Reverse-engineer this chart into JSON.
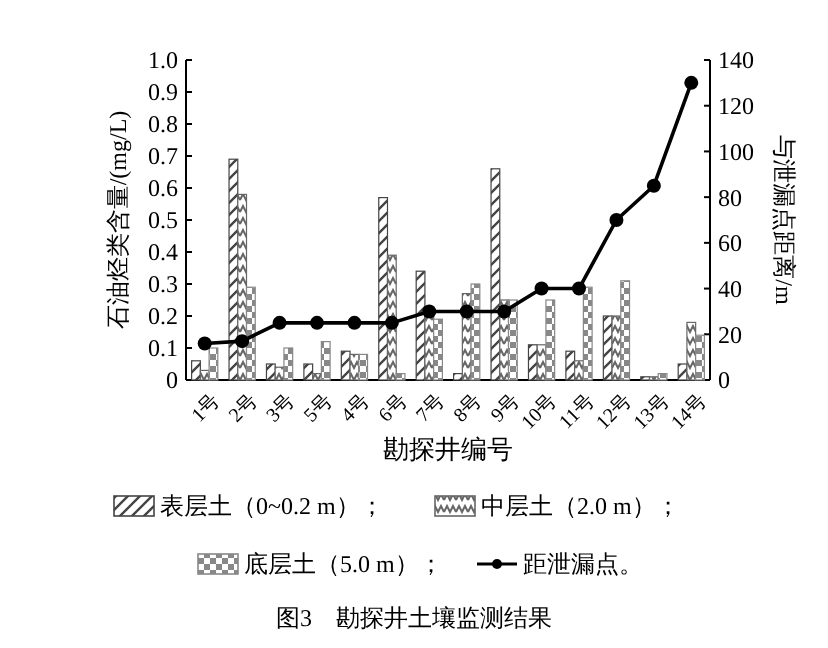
{
  "chart_data": {
    "type": "bar",
    "title": "图3　勘探井土壤监测结果",
    "xlabel": "勘探井编号",
    "ylabel": "石油烃类含量/(mg/L)",
    "y2label": "与泄漏点距离/m",
    "categories": [
      "1号",
      "2号",
      "3号",
      "5号",
      "4号",
      "6号",
      "7号",
      "8号",
      "9号",
      "10号",
      "11号",
      "12号",
      "13号",
      "14号"
    ],
    "ylim": [
      0,
      1
    ],
    "yticks": [
      0,
      0.1,
      0.2,
      0.3,
      0.4,
      0.5,
      0.6,
      0.7,
      0.8,
      0.9,
      {
        "value": 1,
        "label": "1.0"
      }
    ],
    "y2lim": [
      0,
      140
    ],
    "y2ticks": [
      0,
      20,
      40,
      60,
      80,
      100,
      120,
      140
    ],
    "legend": "bottom",
    "marker": "circle",
    "series": [
      {
        "name": "表层土（0~0.2 m）；",
        "color": "#444444",
        "values": [
          0.06,
          0.69,
          0.05,
          0.05,
          0.09,
          0.57,
          0.34,
          0.02,
          0.66,
          0.11,
          0.09,
          0.2,
          0.01,
          0.05
        ]
      },
      {
        "name": "中层土（2.0 m）；",
        "color": "#666666",
        "values": [
          0.03,
          0.58,
          0.04,
          0.02,
          0.08,
          0.39,
          0.22,
          0.27,
          0.25,
          0.11,
          0.06,
          0.2,
          0.01,
          0.18
        ]
      },
      {
        "name": "底层土（5.0 m）；",
        "color": "#888888",
        "values": [
          0.1,
          0.29,
          0.1,
          0.12,
          0.08,
          0.02,
          0.19,
          0.3,
          0.25,
          0.25,
          0.29,
          0.31,
          0.02,
          0.14
        ]
      },
      {
        "name": "距泄漏点。",
        "type": "line",
        "axis": "y2",
        "color": "#000000",
        "values": [
          16,
          17,
          25,
          25,
          25,
          25,
          30,
          30,
          30,
          40,
          40,
          70,
          85,
          130
        ]
      }
    ]
  }
}
